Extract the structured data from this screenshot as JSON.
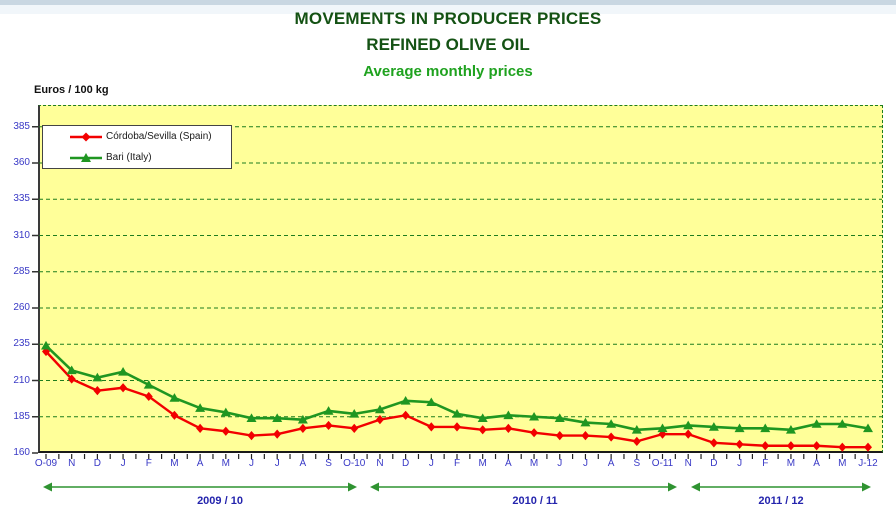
{
  "page": {
    "title_line1": "MOVEMENTS IN PRODUCER PRICES",
    "title_line2": "REFINED OLIVE OIL",
    "subtitle": "Average monthly prices",
    "y_axis_unit_label": "Euros / 100 kg"
  },
  "colors": {
    "title_green": "#145214",
    "subtitle_green": "#1fa21f",
    "plot_background": "#ffff99",
    "gridline_green": "#1e7d1e",
    "axis_label_blue": "#3939c6",
    "season_label_blue": "#2424ad",
    "season_arrow_green": "#2f9331",
    "series_cordoba_red": "#f20000",
    "series_bari_green": "#1f9621",
    "top_bar_blue": "#c9d7e2"
  },
  "legend": {
    "items": [
      {
        "label": "Córdoba/Sevilla (Spain)",
        "marker": "diamond",
        "color": "#f20000"
      },
      {
        "label": "Bari (Italy)",
        "marker": "triangle",
        "color": "#1f9621"
      }
    ]
  },
  "chart_data": {
    "type": "line",
    "title": "MOVEMENTS IN PRODUCER PRICES",
    "subtitle": "REFINED OLIVE OIL — Average monthly prices",
    "ylabel": "Euros / 100 kg",
    "ylim": [
      160,
      400
    ],
    "yticks": [
      160,
      185,
      210,
      235,
      260,
      285,
      310,
      335,
      360,
      385
    ],
    "grid": "horizontal-dashed-green",
    "legend_position": "top-left-inside",
    "categories": [
      "O-09",
      "N",
      "D",
      "J",
      "F",
      "M",
      "A",
      "M",
      "J",
      "J",
      "A",
      "S",
      "O-10",
      "N",
      "D",
      "J",
      "F",
      "M",
      "A",
      "M",
      "J",
      "J",
      "A",
      "S",
      "O-11",
      "N",
      "D",
      "J",
      "F",
      "M",
      "A",
      "M",
      "J-12"
    ],
    "series": [
      {
        "name": "Córdoba/Sevilla (Spain)",
        "color": "#f20000",
        "marker": "diamond",
        "values": [
          230,
          211,
          203,
          205,
          199,
          186,
          177,
          175,
          172,
          173,
          177,
          179,
          177,
          183,
          186,
          178,
          178,
          176,
          177,
          174,
          172,
          172,
          171,
          168,
          173,
          173,
          167,
          166,
          165,
          165,
          165,
          164,
          164
        ]
      },
      {
        "name": "Bari (Italy)",
        "color": "#1f9621",
        "marker": "triangle",
        "values": [
          234,
          217,
          212,
          216,
          207,
          198,
          191,
          188,
          184,
          184,
          183,
          189,
          187,
          190,
          196,
          195,
          187,
          184,
          186,
          185,
          184,
          181,
          180,
          176,
          177,
          179,
          178,
          177,
          177,
          176,
          180,
          180,
          177
        ]
      }
    ],
    "seasons": [
      {
        "label": "2009 / 10"
      },
      {
        "label": "2010 / 11"
      },
      {
        "label": "2011 / 12"
      }
    ]
  }
}
